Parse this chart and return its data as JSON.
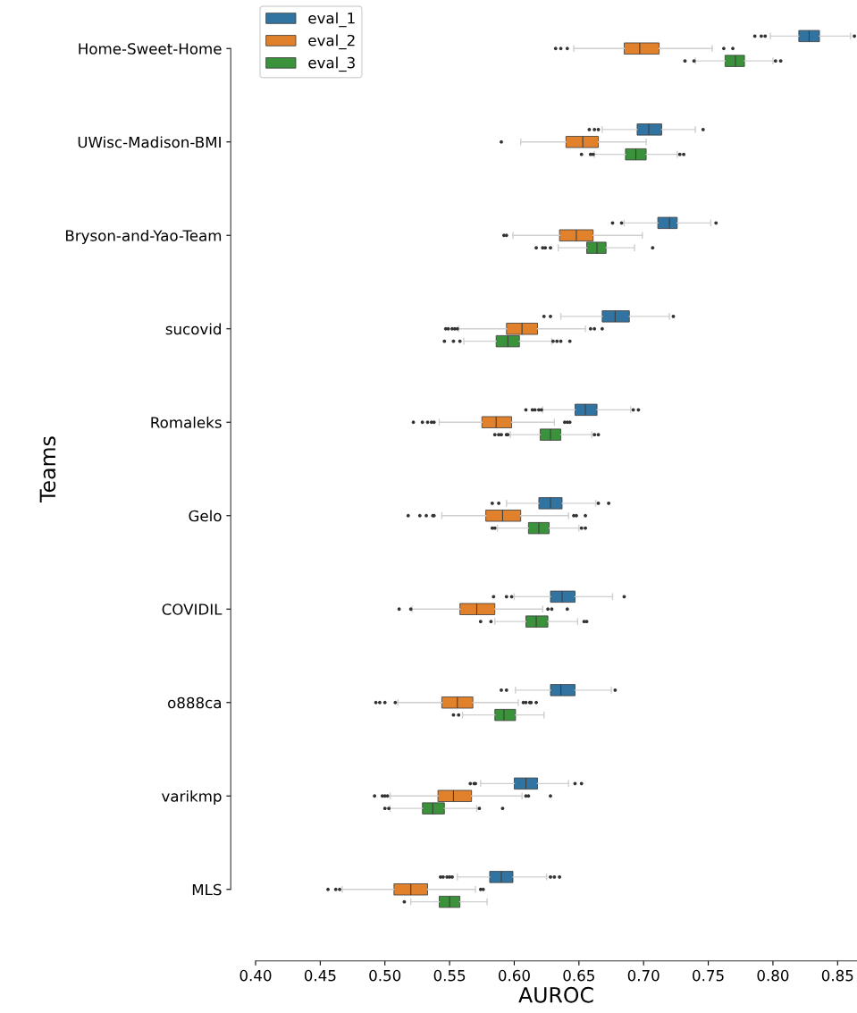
{
  "chart_data": {
    "type": "box",
    "orientation": "horizontal",
    "xlabel": "AUROC",
    "ylabel": "Teams",
    "categories": [
      "Home-Sweet-Home",
      "UWisc-Madison-BMI",
      "Bryson-and-Yao-Team",
      "sucovid",
      "Romaleks",
      "Gelo",
      "COVIDIL",
      "o888ca",
      "varikmp",
      "MLS"
    ],
    "xlim": [
      0.4,
      0.865
    ],
    "xticks": [
      {
        "value": 0.4,
        "label": "0.40"
      },
      0.45,
      {
        "value": 0.5,
        "label": "0.50"
      },
      0.55,
      {
        "value": 0.6,
        "label": "0.60"
      },
      0.65,
      {
        "value": 0.7,
        "label": "0.70"
      },
      0.75,
      {
        "value": 0.8,
        "label": "0.80"
      },
      0.85
    ],
    "grid": false,
    "legend": "top left",
    "series": [
      {
        "name": "eval_1",
        "color": "#3274a1",
        "boxes": [
          {
            "low": 0.798,
            "q1": 0.82,
            "median": 0.828,
            "q3": 0.836,
            "high": 0.86,
            "outliers": [
              0.786,
              0.791,
              0.794,
              0.863
            ]
          },
          {
            "low": 0.668,
            "q1": 0.695,
            "median": 0.704,
            "q3": 0.714,
            "high": 0.74,
            "outliers": [
              0.658,
              0.662,
              0.665,
              0.746
            ]
          },
          {
            "low": 0.685,
            "q1": 0.711,
            "median": 0.72,
            "q3": 0.726,
            "high": 0.752,
            "outliers": [
              0.676,
              0.683,
              0.756
            ]
          },
          {
            "low": 0.636,
            "q1": 0.668,
            "median": 0.678,
            "q3": 0.689,
            "high": 0.72,
            "outliers": [
              0.623,
              0.628,
              0.723
            ]
          },
          {
            "low": 0.622,
            "q1": 0.647,
            "median": 0.655,
            "q3": 0.664,
            "high": 0.69,
            "outliers": [
              0.609,
              0.614,
              0.616,
              0.619,
              0.621,
              0.692,
              0.696
            ]
          },
          {
            "low": 0.594,
            "q1": 0.619,
            "median": 0.628,
            "q3": 0.637,
            "high": 0.663,
            "outliers": [
              0.583,
              0.588,
              0.665,
              0.673
            ]
          },
          {
            "low": 0.6,
            "q1": 0.628,
            "median": 0.637,
            "q3": 0.647,
            "high": 0.676,
            "outliers": [
              0.584,
              0.594,
              0.598,
              0.685
            ]
          },
          {
            "low": 0.601,
            "q1": 0.628,
            "median": 0.636,
            "q3": 0.647,
            "high": 0.675,
            "outliers": [
              0.59,
              0.594,
              0.678
            ]
          },
          {
            "low": 0.574,
            "q1": 0.6,
            "median": 0.609,
            "q3": 0.618,
            "high": 0.642,
            "outliers": [
              0.566,
              0.569,
              0.57,
              0.647,
              0.652
            ]
          },
          {
            "low": 0.556,
            "q1": 0.581,
            "median": 0.59,
            "q3": 0.599,
            "high": 0.625,
            "outliers": [
              0.543,
              0.545,
              0.548,
              0.55,
              0.552,
              0.628,
              0.631,
              0.635
            ]
          }
        ]
      },
      {
        "name": "eval_2",
        "color": "#e1812c",
        "boxes": [
          {
            "low": 0.646,
            "q1": 0.685,
            "median": 0.697,
            "q3": 0.712,
            "high": 0.753,
            "outliers": [
              0.632,
              0.636,
              0.641,
              0.762,
              0.769
            ]
          },
          {
            "low": 0.605,
            "q1": 0.64,
            "median": 0.653,
            "q3": 0.665,
            "high": 0.702,
            "outliers": [
              0.59
            ]
          },
          {
            "low": 0.599,
            "q1": 0.635,
            "median": 0.648,
            "q3": 0.661,
            "high": 0.699,
            "outliers": [
              0.592,
              0.594
            ]
          },
          {
            "low": 0.557,
            "q1": 0.594,
            "median": 0.606,
            "q3": 0.618,
            "high": 0.655,
            "outliers": [
              0.547,
              0.549,
              0.552,
              0.554,
              0.556,
              0.659,
              0.662,
              0.668
            ]
          },
          {
            "low": 0.542,
            "q1": 0.575,
            "median": 0.586,
            "q3": 0.598,
            "high": 0.631,
            "outliers": [
              0.522,
              0.529,
              0.533,
              0.536,
              0.538,
              0.639,
              0.641,
              0.643
            ]
          },
          {
            "low": 0.544,
            "q1": 0.578,
            "median": 0.591,
            "q3": 0.605,
            "high": 0.642,
            "outliers": [
              0.518,
              0.527,
              0.532,
              0.537,
              0.538,
              0.646,
              0.648,
              0.655
            ]
          },
          {
            "low": 0.521,
            "q1": 0.558,
            "median": 0.571,
            "q3": 0.585,
            "high": 0.622,
            "outliers": [
              0.511,
              0.52,
              0.626,
              0.629,
              0.641
            ]
          },
          {
            "low": 0.51,
            "q1": 0.544,
            "median": 0.556,
            "q3": 0.568,
            "high": 0.603,
            "outliers": [
              0.493,
              0.496,
              0.5,
              0.508,
              0.607,
              0.609,
              0.612,
              0.613,
              0.617
            ]
          },
          {
            "low": 0.504,
            "q1": 0.541,
            "median": 0.553,
            "q3": 0.567,
            "high": 0.606,
            "outliers": [
              0.492,
              0.498,
              0.5,
              0.502,
              0.609,
              0.611,
              0.628
            ]
          },
          {
            "low": 0.467,
            "q1": 0.507,
            "median": 0.52,
            "q3": 0.533,
            "high": 0.57,
            "outliers": [
              0.456,
              0.462,
              0.465,
              0.574,
              0.576
            ]
          }
        ]
      },
      {
        "name": "eval_3",
        "color": "#3a923a",
        "boxes": [
          {
            "low": 0.74,
            "q1": 0.763,
            "median": 0.771,
            "q3": 0.778,
            "high": 0.8,
            "outliers": [
              0.732,
              0.739,
              0.802,
              0.806
            ]
          },
          {
            "low": 0.662,
            "q1": 0.686,
            "median": 0.694,
            "q3": 0.702,
            "high": 0.726,
            "outliers": [
              0.652,
              0.659,
              0.661,
              0.728,
              0.731
            ]
          },
          {
            "low": 0.634,
            "q1": 0.656,
            "median": 0.664,
            "q3": 0.671,
            "high": 0.693,
            "outliers": [
              0.617,
              0.622,
              0.624,
              0.628,
              0.707
            ]
          },
          {
            "low": 0.561,
            "q1": 0.586,
            "median": 0.595,
            "q3": 0.604,
            "high": 0.629,
            "outliers": [
              0.546,
              0.553,
              0.558,
              0.63,
              0.633,
              0.636,
              0.643
            ]
          },
          {
            "low": 0.597,
            "q1": 0.62,
            "median": 0.628,
            "q3": 0.636,
            "high": 0.66,
            "outliers": [
              0.585,
              0.588,
              0.59,
              0.594,
              0.595,
              0.662,
              0.665
            ]
          },
          {
            "low": 0.587,
            "q1": 0.611,
            "median": 0.619,
            "q3": 0.627,
            "high": 0.65,
            "outliers": [
              0.583,
              0.585,
              0.652,
              0.655
            ]
          },
          {
            "low": 0.585,
            "q1": 0.609,
            "median": 0.617,
            "q3": 0.626,
            "high": 0.649,
            "outliers": [
              0.574,
              0.582,
              0.654,
              0.656
            ]
          },
          {
            "low": 0.56,
            "q1": 0.585,
            "median": 0.592,
            "q3": 0.601,
            "high": 0.623,
            "outliers": [
              0.553,
              0.557
            ]
          },
          {
            "low": 0.504,
            "q1": 0.529,
            "median": 0.537,
            "q3": 0.546,
            "high": 0.571,
            "outliers": [
              0.5,
              0.503,
              0.573,
              0.591
            ]
          },
          {
            "low": 0.52,
            "q1": 0.542,
            "median": 0.55,
            "q3": 0.558,
            "high": 0.579,
            "outliers": [
              0.515
            ]
          }
        ]
      }
    ]
  }
}
